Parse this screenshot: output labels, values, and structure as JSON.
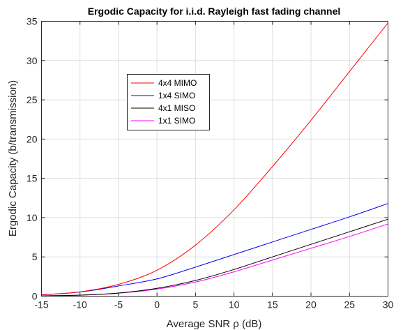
{
  "chart_data": {
    "type": "line",
    "title": "Ergodic Capacity for i.i.d. Rayleigh fast fading channel",
    "xlabel": "Average SNR ρ (dB)",
    "ylabel": "Ergodic Capacity (b/transmission)",
    "xlim": [
      -15,
      30
    ],
    "ylim": [
      0,
      35
    ],
    "xticks": [
      -15,
      -10,
      -5,
      0,
      5,
      10,
      15,
      20,
      25,
      30
    ],
    "yticks": [
      0,
      5,
      10,
      15,
      20,
      25,
      30,
      35
    ],
    "xtick_labels": [
      "-15",
      "-10",
      "-5",
      "0",
      "5",
      "10",
      "15",
      "20",
      "25",
      "30"
    ],
    "ytick_labels": [
      "0",
      "5",
      "10",
      "15",
      "20",
      "25",
      "30",
      "35"
    ],
    "grid": true,
    "legend_placement": "upper-left inside",
    "x": [
      -15,
      -10,
      -5,
      0,
      5,
      10,
      15,
      20,
      25,
      30
    ],
    "series": [
      {
        "name": "4x4 MIMO",
        "color": "#ff0000",
        "values": [
          0.18,
          0.55,
          1.5,
          3.3,
          6.5,
          11.0,
          16.5,
          22.4,
          28.6,
          34.8
        ]
      },
      {
        "name": "1x4 SIMO",
        "color": "#0000ff",
        "values": [
          0.17,
          0.52,
          1.3,
          2.2,
          3.7,
          5.3,
          6.9,
          8.5,
          10.1,
          11.8
        ]
      },
      {
        "name": "4x1 MISO",
        "color": "#000000",
        "values": [
          0.04,
          0.13,
          0.4,
          1.0,
          2.0,
          3.4,
          5.0,
          6.6,
          8.2,
          9.8
        ]
      },
      {
        "name": "1x1 SIMO",
        "color": "#ff00ff",
        "values": [
          0.04,
          0.12,
          0.38,
          0.9,
          1.8,
          3.1,
          4.6,
          6.1,
          7.6,
          9.2
        ]
      }
    ]
  }
}
